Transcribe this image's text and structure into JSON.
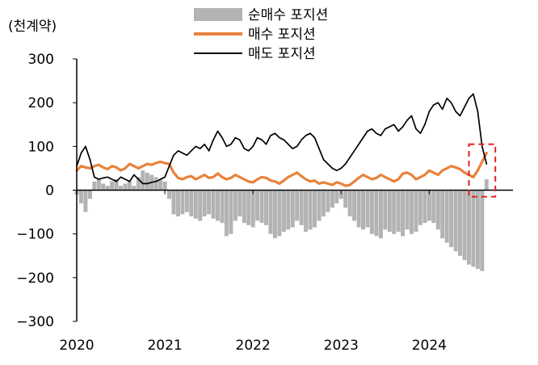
{
  "chart_data": {
    "type": "line",
    "unit_label": "(천계약)",
    "ylim": [
      -300,
      300
    ],
    "y_ticks": [
      "300",
      "200",
      "100",
      "0",
      "−100",
      "−200",
      "−300"
    ],
    "y_tick_values": [
      300,
      200,
      100,
      0,
      -100,
      -200,
      -300
    ],
    "x_ticks": [
      "2020",
      "2021",
      "2022",
      "2023",
      "2024"
    ],
    "x_tick_values": [
      2020.0,
      2021.0,
      2022.0,
      2023.0,
      2024.0
    ],
    "xlim": [
      2020.0,
      2024.95
    ],
    "legend_position": "top",
    "highlight_box": {
      "x": [
        2024.45,
        2024.75
      ],
      "y": [
        -15,
        105
      ],
      "color": "#e32222"
    },
    "colors": {
      "net": "#b3b3b3",
      "buy": "#e8823a",
      "sell": "#000000"
    },
    "series": [
      {
        "name": "순매수 포지션",
        "kind": "bar",
        "x": [
          2020.0,
          2020.05,
          2020.1,
          2020.15,
          2020.2,
          2020.25,
          2020.3,
          2020.35,
          2020.4,
          2020.45,
          2020.5,
          2020.55,
          2020.6,
          2020.65,
          2020.7,
          2020.75,
          2020.8,
          2020.85,
          2020.9,
          2020.95,
          2021.0,
          2021.05,
          2021.1,
          2021.15,
          2021.2,
          2021.25,
          2021.3,
          2021.35,
          2021.4,
          2021.45,
          2021.5,
          2021.55,
          2021.6,
          2021.65,
          2021.7,
          2021.75,
          2021.8,
          2021.85,
          2021.9,
          2021.95,
          2022.0,
          2022.05,
          2022.1,
          2022.15,
          2022.2,
          2022.25,
          2022.3,
          2022.35,
          2022.4,
          2022.45,
          2022.5,
          2022.55,
          2022.6,
          2022.65,
          2022.7,
          2022.75,
          2022.8,
          2022.85,
          2022.9,
          2022.95,
          2023.0,
          2023.05,
          2023.1,
          2023.15,
          2023.2,
          2023.25,
          2023.3,
          2023.35,
          2023.4,
          2023.45,
          2023.5,
          2023.55,
          2023.6,
          2023.65,
          2023.7,
          2023.75,
          2023.8,
          2023.85,
          2023.9,
          2023.95,
          2024.0,
          2024.05,
          2024.1,
          2024.15,
          2024.2,
          2024.25,
          2024.3,
          2024.35,
          2024.4,
          2024.45,
          2024.5,
          2024.55,
          2024.6,
          2024.65
        ],
        "values": [
          -10,
          -30,
          -50,
          -20,
          20,
          25,
          15,
          10,
          20,
          25,
          10,
          15,
          20,
          10,
          30,
          45,
          40,
          35,
          30,
          25,
          20,
          -20,
          -55,
          -60,
          -55,
          -50,
          -60,
          -65,
          -70,
          -60,
          -55,
          -65,
          -70,
          -75,
          -105,
          -100,
          -70,
          -60,
          -75,
          -80,
          -85,
          -70,
          -75,
          -80,
          -100,
          -110,
          -105,
          -95,
          -90,
          -85,
          -70,
          -80,
          -95,
          -90,
          -85,
          -70,
          -60,
          -50,
          -40,
          -30,
          -20,
          -40,
          -60,
          -70,
          -85,
          -90,
          -85,
          -100,
          -105,
          -110,
          -90,
          -95,
          -100,
          -95,
          -105,
          -90,
          -100,
          -95,
          -80,
          -75,
          -70,
          -75,
          -90,
          -110,
          -120,
          -130,
          -140,
          -150,
          -160,
          -170,
          -175,
          -180,
          -185,
          25
        ]
      },
      {
        "name": "매수 포지션",
        "kind": "line",
        "x": [
          2020.0,
          2020.05,
          2020.1,
          2020.15,
          2020.2,
          2020.25,
          2020.3,
          2020.35,
          2020.4,
          2020.45,
          2020.5,
          2020.55,
          2020.6,
          2020.65,
          2020.7,
          2020.75,
          2020.8,
          2020.85,
          2020.9,
          2020.95,
          2021.0,
          2021.05,
          2021.1,
          2021.15,
          2021.2,
          2021.25,
          2021.3,
          2021.35,
          2021.4,
          2021.45,
          2021.5,
          2021.55,
          2021.6,
          2021.65,
          2021.7,
          2021.75,
          2021.8,
          2021.85,
          2021.9,
          2021.95,
          2022.0,
          2022.05,
          2022.1,
          2022.15,
          2022.2,
          2022.25,
          2022.3,
          2022.35,
          2022.4,
          2022.45,
          2022.5,
          2022.55,
          2022.6,
          2022.65,
          2022.7,
          2022.75,
          2022.8,
          2022.85,
          2022.9,
          2022.95,
          2023.0,
          2023.05,
          2023.1,
          2023.15,
          2023.2,
          2023.25,
          2023.3,
          2023.35,
          2023.4,
          2023.45,
          2023.5,
          2023.55,
          2023.6,
          2023.65,
          2023.7,
          2023.75,
          2023.8,
          2023.85,
          2023.9,
          2023.95,
          2024.0,
          2024.05,
          2024.1,
          2024.15,
          2024.2,
          2024.25,
          2024.3,
          2024.35,
          2024.4,
          2024.45,
          2024.5,
          2024.55,
          2024.6,
          2024.65
        ],
        "values": [
          45,
          55,
          52,
          50,
          55,
          58,
          52,
          48,
          55,
          52,
          45,
          50,
          60,
          55,
          50,
          55,
          60,
          58,
          62,
          65,
          62,
          60,
          40,
          28,
          25,
          30,
          32,
          25,
          30,
          35,
          28,
          30,
          38,
          30,
          25,
          28,
          35,
          30,
          25,
          20,
          18,
          25,
          30,
          28,
          22,
          20,
          15,
          22,
          30,
          35,
          40,
          32,
          25,
          20,
          22,
          15,
          18,
          15,
          12,
          18,
          15,
          10,
          12,
          20,
          28,
          35,
          30,
          25,
          28,
          35,
          30,
          25,
          20,
          25,
          38,
          40,
          35,
          25,
          30,
          35,
          45,
          40,
          35,
          45,
          50,
          55,
          52,
          48,
          40,
          35,
          30,
          45,
          65,
          85
        ]
      },
      {
        "name": "매도 포지션",
        "kind": "line",
        "x": [
          2020.0,
          2020.05,
          2020.1,
          2020.15,
          2020.2,
          2020.25,
          2020.3,
          2020.35,
          2020.4,
          2020.45,
          2020.5,
          2020.55,
          2020.6,
          2020.65,
          2020.7,
          2020.75,
          2020.8,
          2020.85,
          2020.9,
          2020.95,
          2021.0,
          2021.05,
          2021.1,
          2021.15,
          2021.2,
          2021.25,
          2021.3,
          2021.35,
          2021.4,
          2021.45,
          2021.5,
          2021.55,
          2021.6,
          2021.65,
          2021.7,
          2021.75,
          2021.8,
          2021.85,
          2021.9,
          2021.95,
          2022.0,
          2022.05,
          2022.1,
          2022.15,
          2022.2,
          2022.25,
          2022.3,
          2022.35,
          2022.4,
          2022.45,
          2022.5,
          2022.55,
          2022.6,
          2022.65,
          2022.7,
          2022.75,
          2022.8,
          2022.85,
          2022.9,
          2022.95,
          2023.0,
          2023.05,
          2023.1,
          2023.15,
          2023.2,
          2023.25,
          2023.3,
          2023.35,
          2023.4,
          2023.45,
          2023.5,
          2023.55,
          2023.6,
          2023.65,
          2023.7,
          2023.75,
          2023.8,
          2023.85,
          2023.9,
          2023.95,
          2024.0,
          2024.05,
          2024.1,
          2024.15,
          2024.2,
          2024.25,
          2024.3,
          2024.35,
          2024.4,
          2024.45,
          2024.5,
          2024.55,
          2024.6,
          2024.65
        ],
        "values": [
          55,
          85,
          100,
          70,
          30,
          25,
          28,
          30,
          25,
          20,
          30,
          25,
          20,
          35,
          25,
          15,
          15,
          18,
          20,
          25,
          30,
          55,
          80,
          90,
          85,
          80,
          90,
          100,
          95,
          105,
          90,
          115,
          135,
          120,
          100,
          105,
          120,
          115,
          95,
          90,
          100,
          120,
          115,
          105,
          125,
          130,
          120,
          115,
          105,
          95,
          100,
          115,
          125,
          130,
          120,
          95,
          70,
          60,
          50,
          45,
          50,
          60,
          75,
          90,
          105,
          120,
          135,
          140,
          130,
          125,
          140,
          145,
          150,
          135,
          145,
          160,
          170,
          140,
          130,
          150,
          180,
          195,
          200,
          185,
          210,
          200,
          180,
          170,
          190,
          210,
          220,
          180,
          100,
          60
        ]
      }
    ]
  }
}
